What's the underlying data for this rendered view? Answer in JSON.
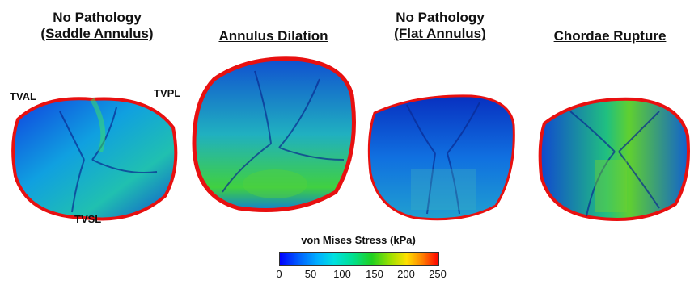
{
  "panels": [
    {
      "title_line1": "No Pathology",
      "title_line2": "(Saddle Annulus)"
    },
    {
      "title_line1": "Annulus Dilation",
      "title_line2": ""
    },
    {
      "title_line1": "No Pathology",
      "title_line2": "(Flat Annulus)"
    },
    {
      "title_line1": "Chordae Rupture",
      "title_line2": ""
    }
  ],
  "leaflet_labels": {
    "anterior": "TVAL",
    "posterior": "TVPL",
    "septal": "TVSL"
  },
  "colorbar": {
    "title": "von Mises Stress (kPa)",
    "ticks": [
      "0",
      "50",
      "100",
      "150",
      "200",
      "250"
    ],
    "min": 0,
    "max": 250
  },
  "colors": {
    "low": "#0000ff",
    "mid": "#20d020",
    "high": "#ff0000",
    "rim": "#e81010"
  }
}
